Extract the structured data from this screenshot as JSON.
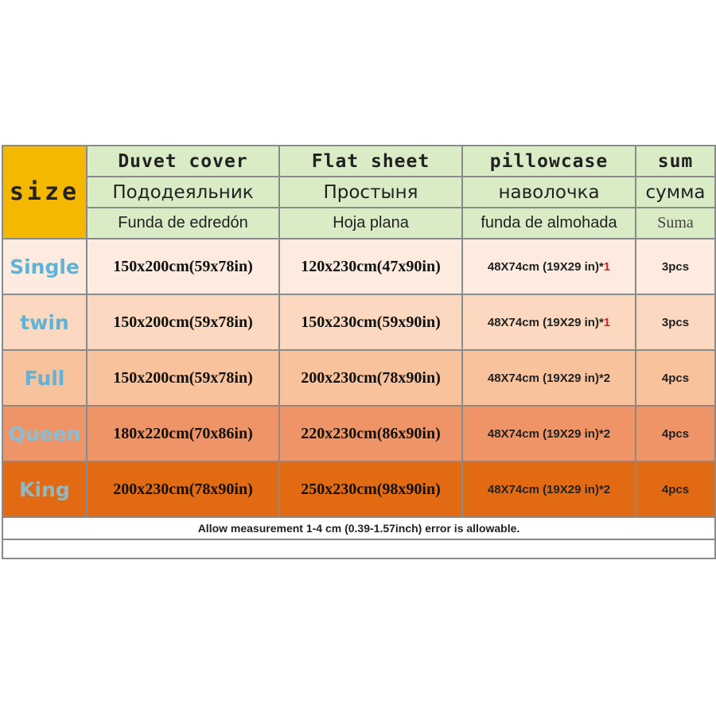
{
  "header": {
    "size_label": "size",
    "columns": [
      {
        "en": "Duvet cover",
        "ru": "Пододеяльник",
        "es": "Funda de edredón"
      },
      {
        "en": "Flat sheet",
        "ru": "Простыня",
        "es": "Hoja plana"
      },
      {
        "en": "pillowcase",
        "ru": "наволочка",
        "es": "funda de almohada"
      },
      {
        "en": "sum",
        "ru": "сумма",
        "es": "Suma"
      }
    ]
  },
  "rows": [
    {
      "size": "Single",
      "duvet": "150x200cm(59x78in)",
      "flat": "120x230cm(47x90in)",
      "pillow": "48X74cm (19X29 in)*",
      "pillow_qty": "1",
      "sum": "3pcs"
    },
    {
      "size": "twin",
      "duvet": "150x200cm(59x78in)",
      "flat": "150x230cm(59x90in)",
      "pillow": "48X74cm (19X29 in)*",
      "pillow_qty": "1",
      "sum": "3pcs"
    },
    {
      "size": "Full",
      "duvet": "150x200cm(59x78in)",
      "flat": "200x230cm(78x90in)",
      "pillow": "48X74cm (19X29 in)*",
      "pillow_qty": "2",
      "sum": "4pcs"
    },
    {
      "size": "Queen",
      "duvet": "180x220cm(70x86in)",
      "flat": "220x230cm(86x90in)",
      "pillow": "48X74cm (19X29 in)*",
      "pillow_qty": "2",
      "sum": "4pcs"
    },
    {
      "size": "King",
      "duvet": "200x230cm(78x90in)",
      "flat": "250x230cm(98x90in)",
      "pillow": "48X74cm (19X29 in)*",
      "pillow_qty": "2",
      "sum": "4pcs"
    }
  ],
  "note": "Allow measurement 1-4 cm (0.39-1.57inch) error is allowable.",
  "colors": {
    "header_bg": "#d9ecc6",
    "size_bg": "#f5b800",
    "size_label_text": "#5fb3d6",
    "qty_red": "#d8202a"
  }
}
